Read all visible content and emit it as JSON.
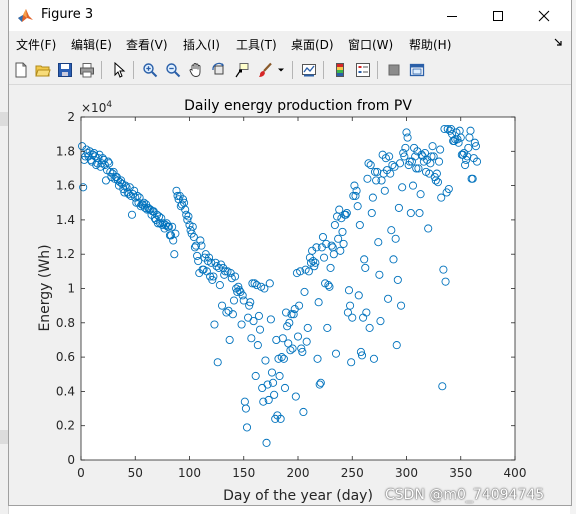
{
  "window": {
    "title": "Figure 3"
  },
  "menu": [
    "文件(F)",
    "编辑(E)",
    "查看(V)",
    "插入(I)",
    "工具(T)",
    "桌面(D)",
    "窗口(W)",
    "帮助(H)"
  ],
  "toolbar": [
    "new-figure",
    "open-file",
    "save",
    "print",
    "select",
    "zoom-in",
    "zoom-out",
    "pan",
    "rotate-3d",
    "data-cursor",
    "brush",
    "link-plot",
    "colorbar",
    "legend",
    "hide-plot-tools",
    "show-plot-tools"
  ],
  "colors": {
    "marker": "#0072bd",
    "axes_bg": "#ffffff",
    "figure_bg": "#f0f0f0"
  },
  "watermark": "CSDN @m0_74094745",
  "chart_data": {
    "type": "scatter",
    "title": "Daily energy production from PV",
    "xlabel": "Day of the year (day)",
    "ylabel": "Energy (Wh)",
    "y_exponent": "×10^4",
    "xlim": [
      0,
      400
    ],
    "ylim": [
      0,
      20000
    ],
    "xticks": [
      "0",
      "50",
      "100",
      "150",
      "200",
      "250",
      "300",
      "350",
      "400"
    ],
    "yticks": [
      "0",
      "0.2",
      "0.4",
      "0.6",
      "0.8",
      "1",
      "1.2",
      "1.4",
      "1.6",
      "1.8",
      "2"
    ],
    "grid": false,
    "legend": "none",
    "x": [
      1,
      2,
      3,
      4,
      5,
      6,
      7,
      8,
      9,
      10,
      11,
      12,
      13,
      14,
      15,
      16,
      17,
      18,
      19,
      20,
      21,
      22,
      23,
      24,
      25,
      26,
      27,
      28,
      29,
      30,
      31,
      32,
      33,
      34,
      35,
      36,
      37,
      38,
      39,
      40,
      41,
      42,
      43,
      44,
      45,
      46,
      47,
      48,
      49,
      50,
      51,
      52,
      53,
      54,
      55,
      56,
      57,
      58,
      59,
      60,
      61,
      62,
      63,
      64,
      65,
      66,
      67,
      68,
      69,
      70,
      71,
      72,
      73,
      74,
      75,
      76,
      77,
      78,
      79,
      80,
      81,
      82,
      83,
      84,
      85,
      86,
      87,
      88,
      89,
      90,
      91,
      92,
      93,
      94,
      95,
      96,
      97,
      98,
      99,
      100,
      101,
      102,
      103,
      104,
      105,
      106,
      107,
      108,
      109,
      110,
      111,
      112,
      113,
      114,
      115,
      116,
      117,
      118,
      119,
      120,
      121,
      122,
      123,
      124,
      125,
      126,
      127,
      128,
      129,
      130,
      131,
      132,
      133,
      134,
      135,
      136,
      137,
      138,
      139,
      140,
      141,
      142,
      143,
      144,
      145,
      146,
      147,
      148,
      149,
      150,
      151,
      152,
      153,
      154,
      155,
      156,
      157,
      158,
      159,
      160,
      161,
      162,
      163,
      164,
      165,
      166,
      167,
      168,
      169,
      170,
      171,
      172,
      173,
      174,
      175,
      176,
      177,
      178,
      179,
      180,
      181,
      182,
      183,
      184,
      185,
      186,
      187,
      188,
      189,
      190,
      191,
      192,
      193,
      194,
      195,
      196,
      197,
      198,
      199,
      200,
      201,
      202,
      203,
      204,
      205,
      206,
      207,
      208,
      209,
      210,
      211,
      212,
      213,
      214,
      215,
      216,
      217,
      218,
      219,
      220,
      221,
      222,
      223,
      224,
      225,
      226,
      227,
      228,
      229,
      230,
      231,
      232,
      233,
      234,
      235,
      236,
      237,
      238,
      239,
      240,
      241,
      242,
      243,
      244,
      245,
      246,
      247,
      248,
      249,
      250,
      251,
      252,
      253,
      254,
      255,
      256,
      257,
      258,
      259,
      260,
      261,
      262,
      263,
      264,
      265,
      266,
      267,
      268,
      269,
      270,
      271,
      272,
      273,
      274,
      275,
      276,
      277,
      278,
      279,
      280,
      281,
      282,
      283,
      284,
      285,
      286,
      287,
      288,
      289,
      290,
      291,
      292,
      293,
      294,
      295,
      296,
      297,
      298,
      299,
      300,
      301,
      302,
      303,
      304,
      305,
      306,
      307,
      308,
      309,
      310,
      311,
      312,
      313,
      314,
      315,
      316,
      317,
      318,
      319,
      320,
      321,
      322,
      323,
      324,
      325,
      326,
      327,
      328,
      329,
      330,
      331,
      332,
      333,
      334,
      335,
      336,
      337,
      338,
      339,
      340,
      341,
      342,
      343,
      344,
      345,
      346,
      347,
      348,
      349,
      350,
      351,
      352,
      353,
      354,
      355,
      356,
      357,
      358,
      359,
      360,
      361,
      362,
      363,
      364,
      365
    ],
    "y": [
      18300,
      15900,
      17500,
      17700,
      18100,
      17900,
      17700,
      18000,
      17500,
      17400,
      17800,
      17900,
      17700,
      17200,
      17300,
      17600,
      17800,
      17100,
      17300,
      17600,
      17500,
      17200,
      16300,
      16900,
      17400,
      17300,
      16800,
      16500,
      16700,
      16800,
      16400,
      16500,
      16500,
      16300,
      16000,
      16200,
      16300,
      16100,
      15800,
      15600,
      16000,
      15900,
      15600,
      15500,
      15900,
      15400,
      14300,
      15500,
      15700,
      15300,
      15000,
      15400,
      15000,
      15300,
      14800,
      14900,
      14900,
      15000,
      14700,
      14900,
      14600,
      14700,
      14600,
      14600,
      14300,
      14500,
      14500,
      14100,
      14000,
      14300,
      13800,
      14200,
      13800,
      14100,
      13700,
      13800,
      13500,
      13700,
      13800,
      13600,
      13600,
      13100,
      13100,
      13600,
      12800,
      12000,
      13200,
      15700,
      15400,
      15200,
      15400,
      14800,
      14900,
      15200,
      15000,
      14600,
      14300,
      14000,
      14200,
      13700,
      13400,
      13200,
      13600,
      13000,
      12400,
      12500,
      11900,
      11600,
      10900,
      12800,
      12500,
      11100,
      11100,
      11800,
      12000,
      11000,
      11600,
      11800,
      10700,
      11500,
      10500,
      10700,
      7900,
      11500,
      11300,
      5700,
      11200,
      10200,
      11400,
      9000,
      11200,
      10800,
      11000,
      8600,
      11000,
      8700,
      7000,
      10900,
      10600,
      8500,
      9300,
      10700,
      10000,
      9800,
      10100,
      9900,
      9800,
      7900,
      9600,
      9300,
      3400,
      3000,
      1900,
      8300,
      9000,
      9200,
      7100,
      10300,
      8100,
      10300,
      4900,
      10200,
      6700,
      8400,
      7600,
      10100,
      4200,
      3400,
      10000,
      5800,
      1000,
      4400,
      3500,
      10300,
      8200,
      5100,
      4500,
      3800,
      2400,
      7000,
      2600,
      5900,
      4900,
      2400,
      6000,
      7100,
      5900,
      4200,
      8600,
      7800,
      6800,
      8000,
      6400,
      8500,
      6500,
      8500,
      8800,
      3700,
      10900,
      7200,
      9000,
      11000,
      6500,
      6300,
      2800,
      9800,
      11100,
      6900,
      7700,
      11000,
      11800,
      11500,
      12200,
      11600,
      11300,
      11500,
      12400,
      5900,
      9200,
      4400,
      4500,
      12400,
      13000,
      11800,
      10300,
      12600,
      7700,
      10200,
      10100,
      11200,
      12500,
      12400,
      12000,
      13700,
      6200,
      14200,
      12900,
      14600,
      12200,
      14100,
      13300,
      12600,
      14300,
      14300,
      14400,
      8600,
      9900,
      9000,
      5700,
      8300,
      15400,
      16000,
      15400,
      15700,
      14800,
      9600,
      13700,
      6300,
      6100,
      8300,
      11700,
      11200,
      8600,
      16400,
      17300,
      7700,
      17200,
      14400,
      15300,
      5900,
      16800,
      16300,
      16800,
      12700,
      10800,
      8100,
      16300,
      17800,
      16700,
      15700,
      17600,
      16900,
      9400,
      17700,
      16700,
      13400,
      17200,
      11700,
      17100,
      12900,
      6700,
      10500,
      14700,
      17300,
      9000,
      15900,
      17900,
      17700,
      18200,
      19100,
      18800,
      17200,
      17400,
      14400,
      17400,
      16000,
      18200,
      17700,
      17000,
      18000,
      17000,
      14400,
      15500,
      17800,
      17700,
      17400,
      17900,
      16800,
      17500,
      13500,
      16700,
      17300,
      17700,
      18300,
      17700,
      16500,
      16300,
      16700,
      16200,
      17400,
      18100,
      15300,
      4300,
      11100,
      19300,
      10400,
      15600,
      19300,
      15800,
      19200,
      19300,
      19000,
      18600,
      18600,
      18700,
      19100,
      18700,
      18500,
      19200,
      18800,
      17800,
      17800,
      17900,
      17200,
      17500,
      17700,
      18200,
      18800,
      19200,
      16400,
      16400,
      17600,
      18500,
      18300,
      17400
    ]
  }
}
